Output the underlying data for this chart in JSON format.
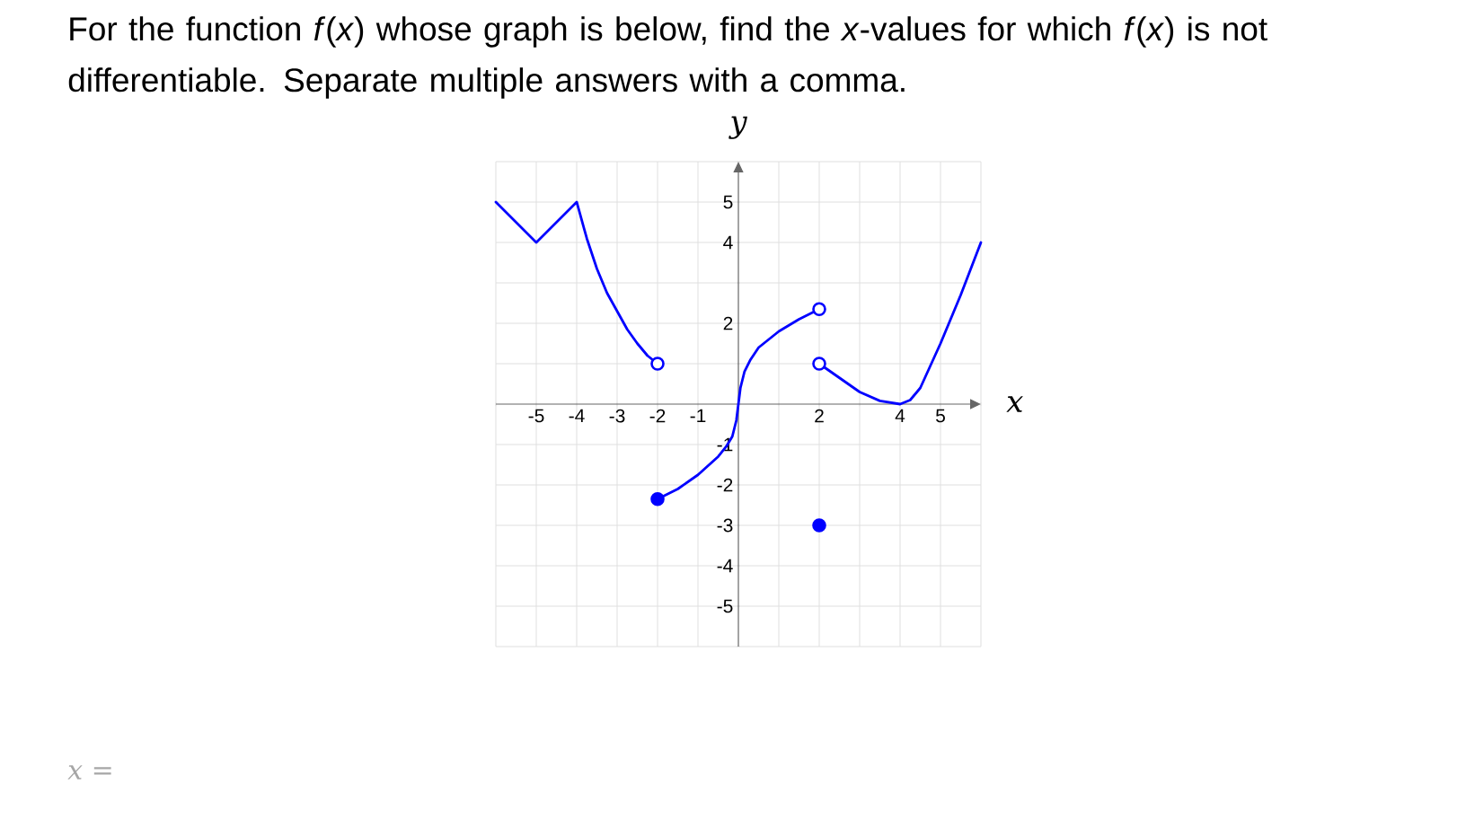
{
  "chart_data": {
    "type": "line",
    "title": "For the function *f*(*x*) whose graph is below, find the *x*-values for which *f*(*x*) is not differentiable. Separate multiple answers with a comma.",
    "xlabel": "x",
    "ylabel": "y",
    "annotations": [
      "x ="
    ],
    "xlim": [
      -6,
      6
    ],
    "ylim": [
      -6,
      6
    ],
    "xticks": [
      {
        "value": -6,
        "label": null
      },
      -5,
      -4,
      -3,
      -2,
      -1,
      {
        "value": 1,
        "label": null
      },
      2,
      {
        "value": 3,
        "label": null
      },
      4,
      5,
      {
        "value": 6,
        "label": null
      }
    ],
    "yticks": [
      {
        "value": -6,
        "label": null
      },
      -5,
      -4,
      -3,
      -2,
      -1,
      {
        "value": 1,
        "label": null
      },
      2,
      {
        "value": 3,
        "label": null
      },
      4,
      5,
      {
        "value": 6,
        "label": null
      }
    ],
    "grid": true,
    "line_style": "solid",
    "series": [
      {
        "color": "#0000ff",
        "marker": "none",
        "x": [
          -6,
          -5,
          -4,
          -3.75,
          -3.5,
          -3.25,
          -3,
          -2.75,
          -2.5,
          -2.25,
          -2
        ],
        "values": [
          5,
          4,
          5,
          4.1,
          3.35,
          2.75,
          2.3,
          1.85,
          1.5,
          1.2,
          1
        ]
      },
      {
        "color": "#0000ff",
        "marker": "none",
        "x": [
          -2,
          -1.5,
          -1,
          -0.5,
          -0.3,
          -0.15,
          -0.05,
          0,
          0.05,
          0.15,
          0.3,
          0.5,
          1,
          1.5,
          2
        ],
        "values": [
          -2.35,
          -2.1,
          -1.75,
          -1.3,
          -1.05,
          -0.8,
          -0.4,
          0,
          0.4,
          0.8,
          1.1,
          1.4,
          1.8,
          2.1,
          2.35
        ]
      },
      {
        "color": "#0000ff",
        "marker": "none",
        "x": [
          2,
          2.5,
          3,
          3.5,
          4,
          4.25,
          4.5,
          5,
          5.5,
          6
        ],
        "values": [
          1,
          0.65,
          0.3,
          0.08,
          0,
          0.1,
          0.4,
          1.5,
          2.7,
          4
        ]
      },
      {
        "type": "scatter",
        "color": "#0000ff",
        "marker": "circle",
        "colors": [
          "#ffffff",
          "#ffffff",
          "#ffffff",
          "#0000ff",
          "#0000ff"
        ],
        "x": [
          -2,
          2,
          2,
          -2,
          2
        ],
        "values": [
          1,
          2.35,
          1,
          -2.35,
          -3
        ]
      }
    ]
  }
}
